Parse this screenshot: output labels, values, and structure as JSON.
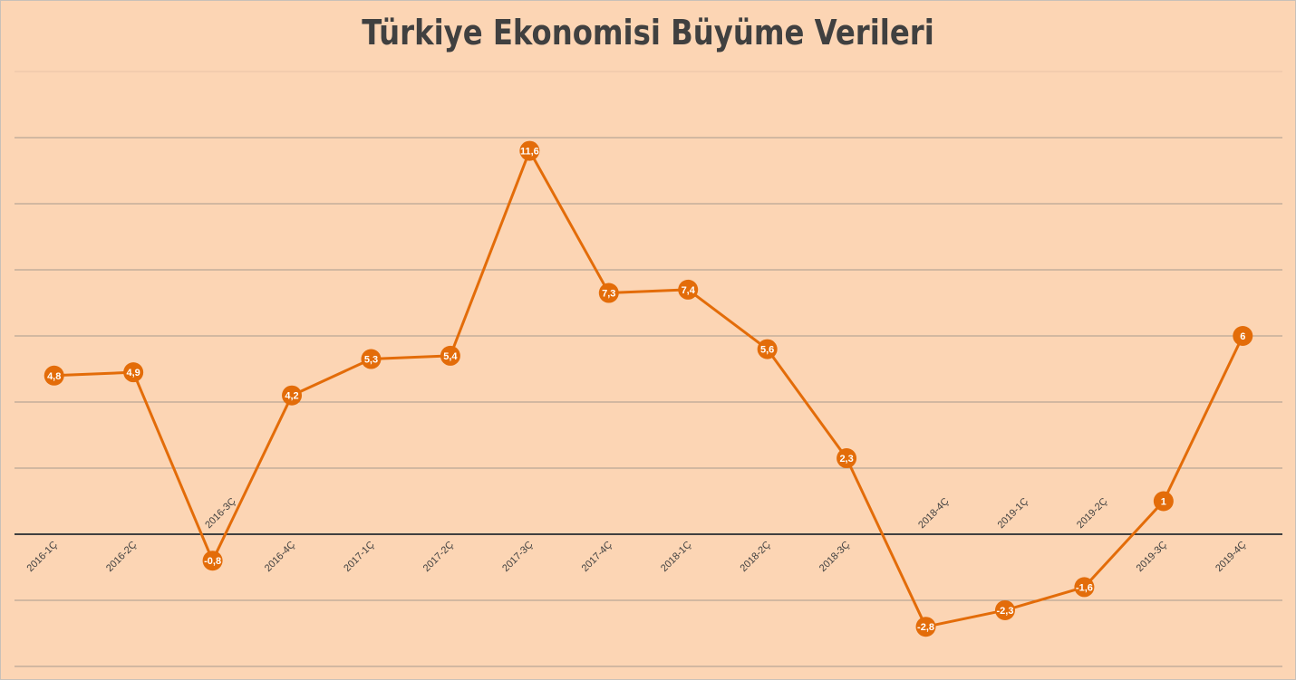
{
  "chart_data": {
    "type": "line",
    "title": "Türkiye Ekonomisi Büyüme Verileri",
    "categories": [
      "2016-1Ç",
      "2016-2Ç",
      "2016-3Ç",
      "2016-4Ç",
      "2017-1Ç",
      "2017-2Ç",
      "2017-3Ç",
      "2017-4Ç",
      "2018-1Ç",
      "2018-2Ç",
      "2018-3Ç",
      "2018-4Ç",
      "2019-1Ç",
      "2019-2Ç",
      "2019-3Ç",
      "2019-4Ç"
    ],
    "series": [
      {
        "values": [
          4.8,
          4.9,
          -0.8,
          4.2,
          5.3,
          5.4,
          11.6,
          7.3,
          7.4,
          5.6,
          2.3,
          -2.8,
          -2.3,
          -1.6,
          1,
          6
        ],
        "labels": [
          "4,8",
          "4,9",
          "-0,8",
          "4,2",
          "5,3",
          "5,4",
          "11,6",
          "7,3",
          "7,4",
          "5,6",
          "2,3",
          "-2,8",
          "-2,3",
          "-1,6",
          "1",
          "6"
        ]
      }
    ],
    "ylim": [
      -4,
      14
    ],
    "ytick_step": 2,
    "grid": true,
    "y_tick_labels_visible": false,
    "legend": "none",
    "colors": {
      "background": "#FCD5B4",
      "line": "#E36C09",
      "grid": "#a89a8e",
      "zero_axis": "#404040",
      "title": "#404040",
      "label": "#ffffff"
    }
  }
}
